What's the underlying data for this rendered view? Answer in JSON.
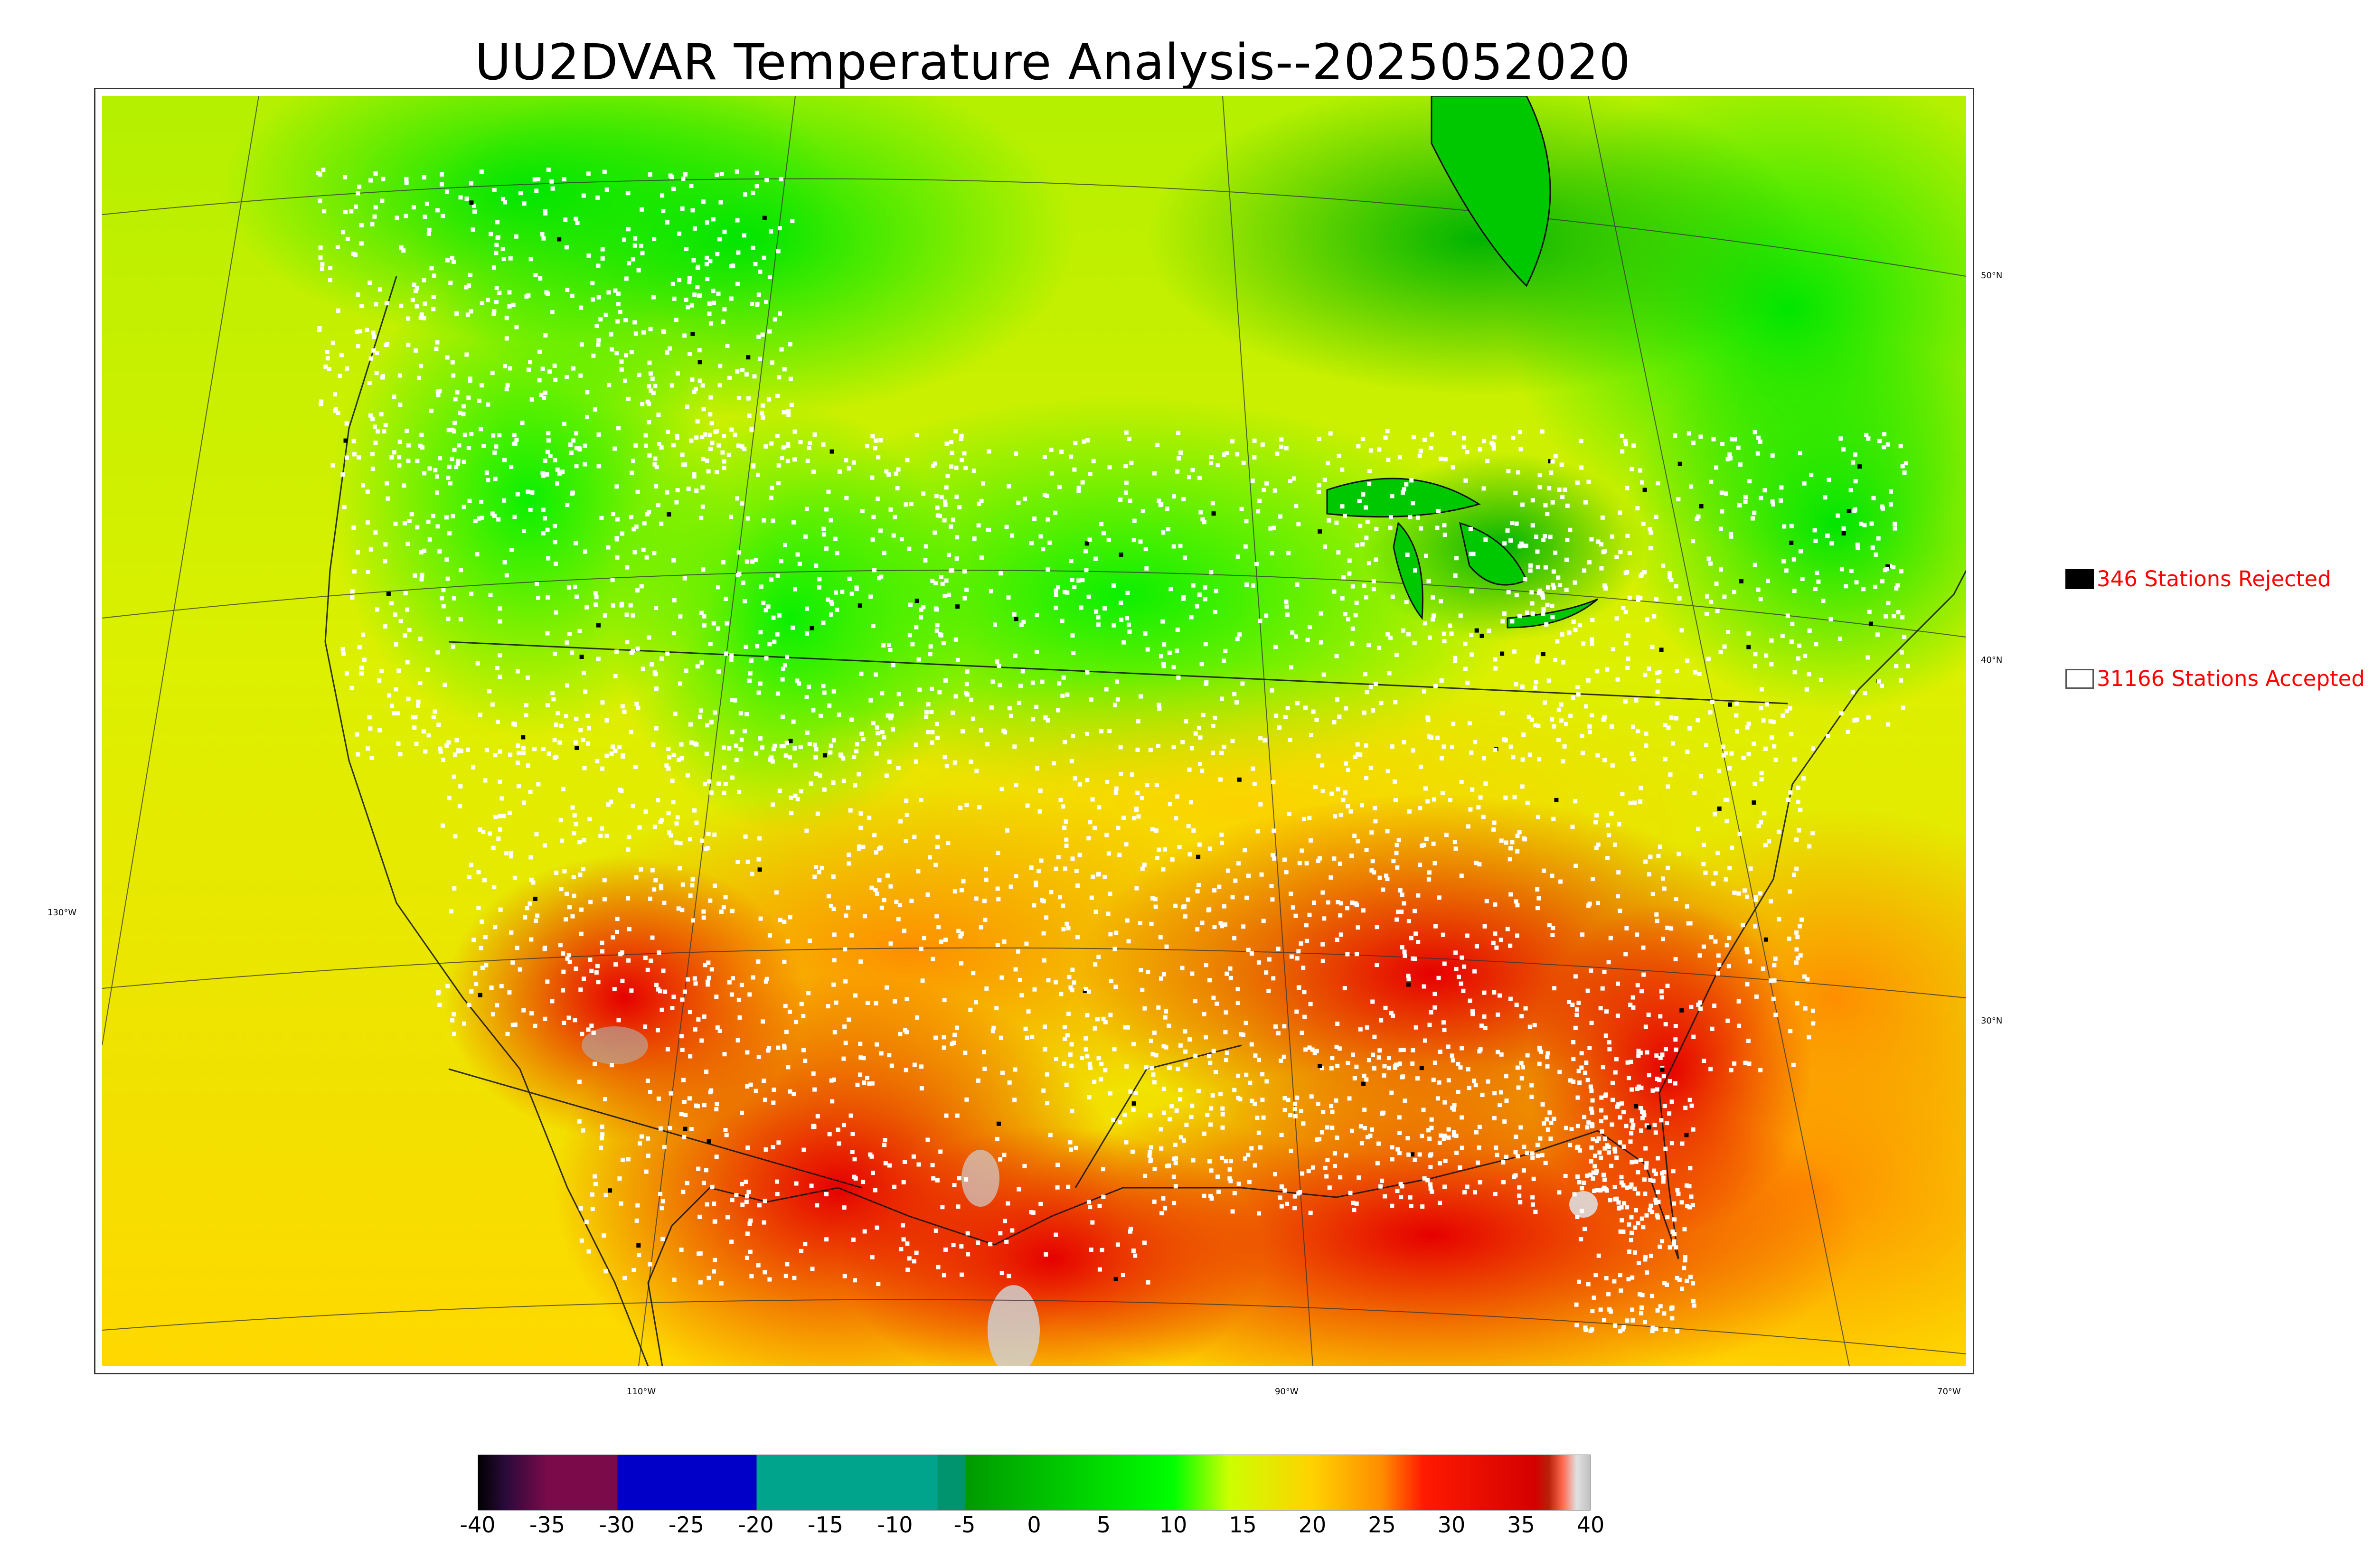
{
  "title": "UU2DVAR Temperature Analysis--2025052020",
  "map": {
    "lat_labels": [
      "50°N",
      "40°N",
      "30°N"
    ],
    "lon_labels": [
      "130°W",
      "110°W",
      "90°W",
      "70°W"
    ]
  },
  "legend": {
    "rejected": "346 Stations Rejected",
    "accepted": "31166 Stations Accepted",
    "rejected_color": "#000000",
    "accepted_color": "#ffffff",
    "text_color": "#ff0000"
  },
  "colorbar": {
    "min": -40,
    "max": 40,
    "tick_labels": [
      "-40",
      "-35",
      "-30",
      "-25",
      "-20",
      "-15",
      "-10",
      "-5",
      "0",
      "5",
      "10",
      "15",
      "20",
      "25",
      "30",
      "35",
      "40"
    ],
    "stops": [
      {
        "value": -40,
        "color": "#000000"
      },
      {
        "value": -38,
        "color": "#2a0a3a"
      },
      {
        "value": -35,
        "color": "#7a0a4a"
      },
      {
        "value": -30,
        "color": "#7a0a4a"
      },
      {
        "value": -29.9,
        "color": "#0000c8"
      },
      {
        "value": -20,
        "color": "#0000c8"
      },
      {
        "value": -19.9,
        "color": "#00a48c"
      },
      {
        "value": -7,
        "color": "#00a48c"
      },
      {
        "value": -6.9,
        "color": "#00946e"
      },
      {
        "value": -5,
        "color": "#00946e"
      },
      {
        "value": -4.9,
        "color": "#009a00"
      },
      {
        "value": 10,
        "color": "#00ff00"
      },
      {
        "value": 14,
        "color": "#ccff00"
      },
      {
        "value": 20,
        "color": "#ffd200"
      },
      {
        "value": 25,
        "color": "#ff8c00"
      },
      {
        "value": 28,
        "color": "#ff1a00"
      },
      {
        "value": 36,
        "color": "#d40000"
      },
      {
        "value": 37,
        "color": "#b8200a"
      },
      {
        "value": 38,
        "color": "#ff6a50"
      },
      {
        "value": 39,
        "color": "#e0e0e0"
      },
      {
        "value": 40,
        "color": "#c0c0c0"
      }
    ]
  }
}
